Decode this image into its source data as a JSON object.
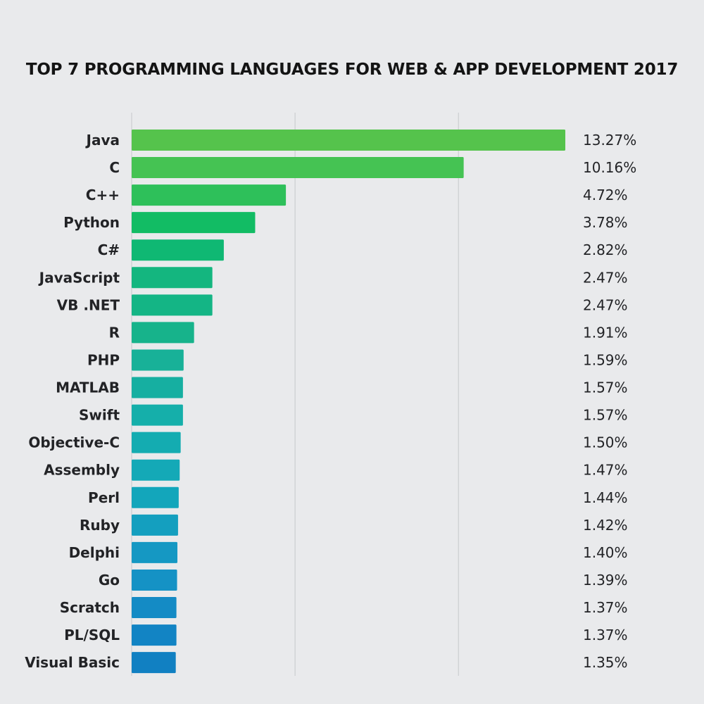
{
  "chart_data": {
    "type": "bar",
    "orientation": "horizontal",
    "title": "TOP 7 PROGRAMMING LANGUAGES FOR WEB & APP DEVELOPMENT 2017",
    "categories": [
      "Java",
      "C",
      "C++",
      "Python",
      "C#",
      "JavaScript",
      "VB .NET",
      "R",
      "PHP",
      "MATLAB",
      "Swift",
      "Objective-C",
      "Assembly",
      "Perl",
      "Ruby",
      "Delphi",
      "Go",
      "Scratch",
      "PL/SQL",
      "Visual Basic"
    ],
    "values": [
      13.27,
      10.16,
      4.72,
      3.78,
      2.82,
      2.47,
      2.47,
      1.91,
      1.59,
      1.57,
      1.57,
      1.5,
      1.47,
      1.44,
      1.42,
      1.4,
      1.39,
      1.37,
      1.37,
      1.35
    ],
    "value_labels": [
      "13.27%",
      "10.16%",
      "4.72%",
      "3.78%",
      "2.82%",
      "2.47%",
      "2.47%",
      "1.91%",
      "1.59%",
      "1.57%",
      "1.57%",
      "1.50%",
      "1.47%",
      "1.44%",
      "1.42%",
      "1.40%",
      "1.39%",
      "1.37%",
      "1.37%",
      "1.35%"
    ],
    "xlim": [
      0,
      13.27
    ],
    "gridlines": [
      5,
      10
    ],
    "grid": true,
    "legend": "none",
    "colors": [
      "#55c34c",
      "#45c353",
      "#2ec05a",
      "#12bc64",
      "#0fb873",
      "#14b67f",
      "#14b585",
      "#17b38b",
      "#18b198",
      "#16afa1",
      "#15afaa",
      "#14acb1",
      "#14a9b7",
      "#13a6bb",
      "#149fbf",
      "#1598c3",
      "#1592c5",
      "#148bc5",
      "#1284c4",
      "#1180c2"
    ]
  }
}
